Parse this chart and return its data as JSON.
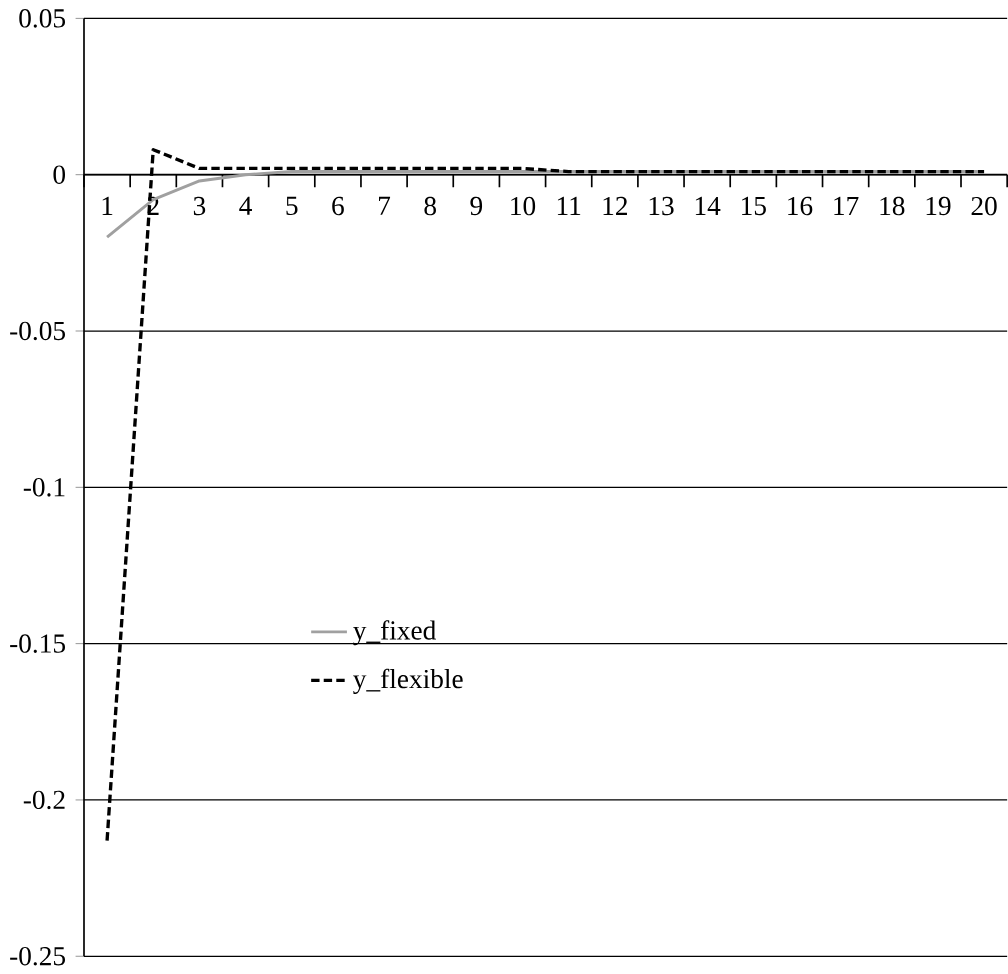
{
  "chart_data": {
    "type": "line",
    "categories": [
      "1",
      "2",
      "3",
      "4",
      "5",
      "6",
      "7",
      "8",
      "9",
      "10",
      "11",
      "12",
      "13",
      "14",
      "15",
      "16",
      "17",
      "18",
      "19",
      "20"
    ],
    "series": [
      {
        "name": "y_fixed",
        "color": "#a0a0a0",
        "line_style": "solid",
        "values": [
          -0.02,
          -0.008,
          -0.002,
          0.0,
          0.001,
          0.001,
          0.001,
          0.001,
          0.001,
          0.001,
          0.001,
          0.001,
          0.001,
          0.001,
          0.001,
          0.001,
          0.001,
          0.001,
          0.001,
          0.001
        ]
      },
      {
        "name": "y_flexible",
        "color": "#000000",
        "line_style": "dashed",
        "values": [
          -0.213,
          0.008,
          0.002,
          0.002,
          0.002,
          0.002,
          0.002,
          0.002,
          0.002,
          0.002,
          0.001,
          0.001,
          0.001,
          0.001,
          0.001,
          0.001,
          0.001,
          0.001,
          0.001,
          0.001
        ]
      }
    ],
    "ylim": [
      -0.25,
      0.05
    ],
    "yticks": [
      0.05,
      0,
      -0.05,
      -0.1,
      -0.15,
      -0.2,
      -0.25
    ],
    "grid": "y",
    "legend": "center"
  }
}
